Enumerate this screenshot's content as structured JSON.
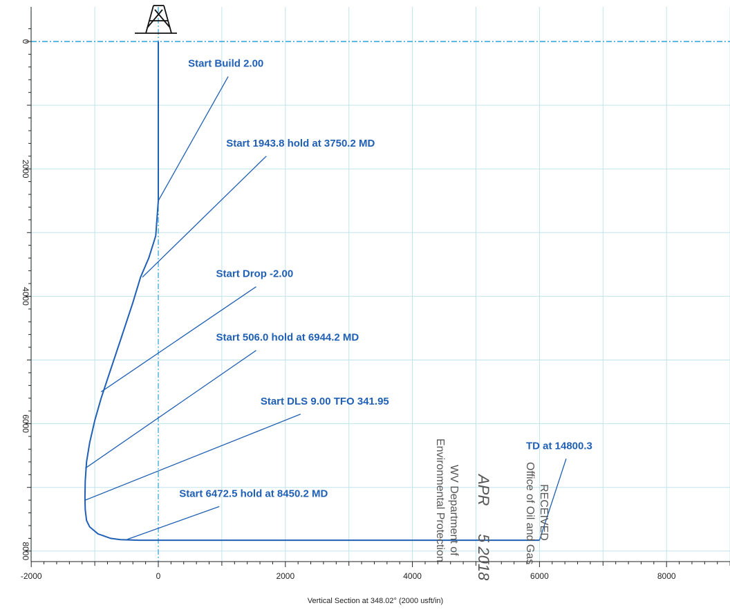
{
  "chart_data": {
    "type": "line",
    "title": "",
    "xlabel": "Vertical Section at 348.02° (2000 usft/in)",
    "ylabel": "",
    "xlim": [
      -2000,
      9000
    ],
    "ylim": [
      -250,
      8150
    ],
    "y_inverted": true,
    "grid": true,
    "x_ticks": [
      -2000,
      0,
      2000,
      4000,
      6000,
      8000
    ],
    "y_ticks": [
      0,
      2000,
      4000,
      6000,
      8000
    ],
    "x_tick_labels": [
      "-2000",
      "0",
      "2000",
      "4000",
      "6000",
      "8000"
    ],
    "y_tick_labels": [
      "0",
      "2000",
      "4000",
      "6000",
      "8000"
    ],
    "series": [
      {
        "x": [
          0,
          0,
          0,
          -40,
          -150,
          -280,
          -400,
          -600,
          -800,
          -900,
          -1000,
          -1080,
          -1130,
          -1150,
          -1155,
          -1150,
          -1130,
          -1080,
          -950,
          -750,
          -600,
          -300,
          1000,
          3000,
          5000,
          6000
        ],
        "y": [
          0,
          1000,
          2500,
          3050,
          3400,
          3700,
          4100,
          4700,
          5300,
          5600,
          5950,
          6300,
          6600,
          6900,
          7150,
          7350,
          7520,
          7620,
          7730,
          7800,
          7820,
          7830,
          7830,
          7830,
          7830,
          7830
        ]
      }
    ],
    "annotations": [
      {
        "text": "Start Build 2.00",
        "at": [
          0,
          2500
        ],
        "label": [
          1100,
          550
        ]
      },
      {
        "text": "Start 1943.8 hold at 3750.2 MD",
        "at": [
          -250,
          3700
        ],
        "label": [
          1700,
          1800
        ]
      },
      {
        "text": "Start Drop -2.00",
        "at": [
          -900,
          5500
        ],
        "label": [
          1540,
          3850
        ]
      },
      {
        "text": "Start 506.0 hold at 6944.2 MD",
        "at": [
          -1150,
          6700
        ],
        "label": [
          1540,
          4850
        ]
      },
      {
        "text": "Start DLS 9.00 TFO 341.95",
        "at": [
          -1150,
          7200
        ],
        "label": [
          2240,
          5850
        ]
      },
      {
        "text": "Start 6472.5 hold at 8450.2 MD",
        "at": [
          -500,
          7820
        ],
        "label": [
          960,
          7300
        ]
      },
      {
        "text": "TD at 14800.3",
        "at": [
          6000,
          7830
        ],
        "label": [
          6420,
          6550
        ]
      }
    ]
  },
  "stamp": {
    "received": "RECEIVED",
    "office": "Office of Oil and Gas",
    "date_month": "APR",
    "date_day_year": "5 2018",
    "department": "WV Department of",
    "env": "Environmental Protection"
  }
}
